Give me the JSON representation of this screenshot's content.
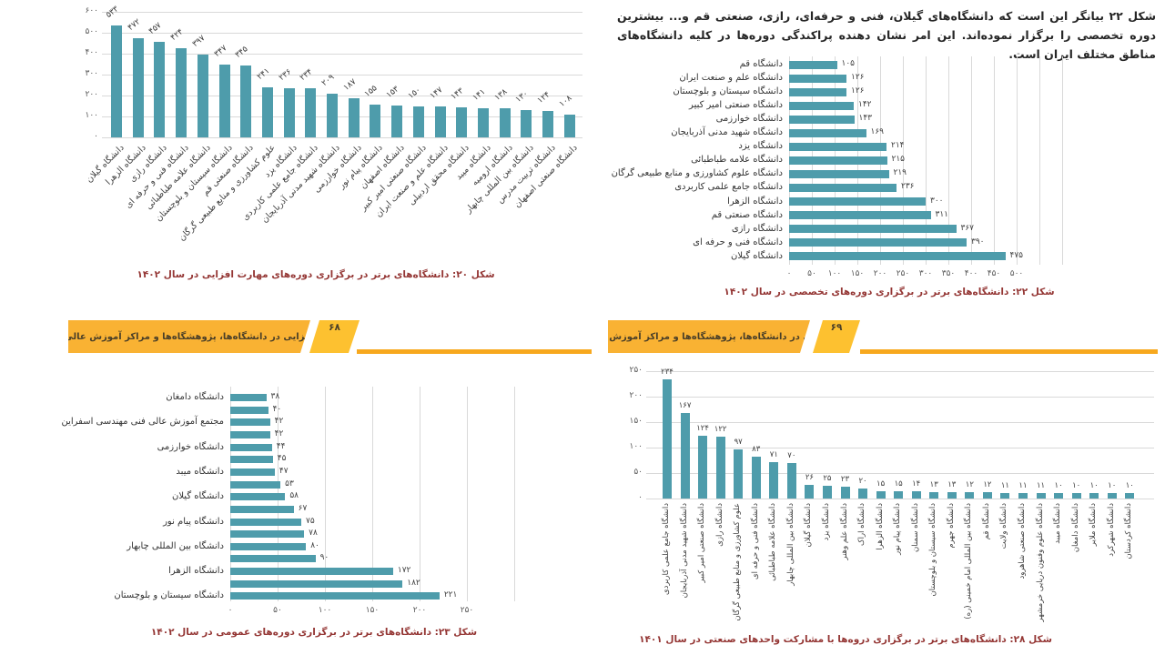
{
  "colors": {
    "bar": "#4e9cab",
    "grid": "#d9d9d9",
    "caption": "#943634",
    "banner_orange": "#f9b233",
    "banner_yellow": "#fdc130",
    "banner_rule": "#f7a81e"
  },
  "banners": {
    "title": "مهارت‌افزایی در دانشگاه‌ها، پژوهشگاه‌ها و مراکز آموزش عالی کشور",
    "left_page_number": "۶۸",
    "right_page_number": "۶۹"
  },
  "intro_paragraph": {
    "text": "شکل ۲۲ بیانگر این است که دانشگاه‌های گیلان، فنی و حرفه‌ای، رازی، صنعتی قم و... بیشترین دوره تخصصی را برگزار نموده‌اند. این امر نشان دهنده پراکندگی دوره‌ها در کلیه دانشگاه‌های مناطق مختلف ایران است."
  },
  "chart_data": [
    {
      "id": "fig20",
      "type": "bar",
      "orientation": "vertical",
      "caption": "شکل ۲۰: دانشگاه‌های برتر در برگزاری دوره‌های مهارت افزایی در سال ۱۴۰۲",
      "categories": [
        "دانشگاه گیلان",
        "دانشگاه الزهرا",
        "دانشگاه رازی",
        "دانشگاه فنی و حرفه ای",
        "دانشگاه علامه طباطبائی",
        "دانشگاه سیستان و بلوچستان",
        "دانشگاه صنعتی قم",
        "علوم کشاورزی و منابع طبیعی گرگان",
        "دانشگاه یزد",
        "دانشگاه جامع علمی کاربردی",
        "دانشگاه شهید مدنی آذربایجان",
        "دانشگاه خوارزمی",
        "دانشگاه پیام نور",
        "دانشگاه اصفهان",
        "دانشگاه صنعتی امیر کبیر",
        "دانشگاه علم و صنعت ایران",
        "دانشگاه محقق اردبیلی",
        "دانشگاه میبد",
        "دانشگاه ارومیه",
        "دانشگاه بین المللی چابهار",
        "دانشگاه تربیت مدرس",
        "دانشگاه صنعتی اصفهان"
      ],
      "values": [
        533,
        472,
        457,
        424,
        397,
        347,
        345,
        241,
        236,
        234,
        209,
        187,
        155,
        153,
        150,
        147,
        143,
        141,
        138,
        130,
        124,
        108
      ],
      "ylim": [
        0,
        600
      ],
      "ytick_step": 100,
      "grid": true,
      "digit_style": "persian"
    },
    {
      "id": "fig22",
      "type": "bar",
      "orientation": "horizontal",
      "caption": "شکل ۲۲: دانشگاه‌های برتر در برگزاری دوره‌های تخصصی در سال ۱۴۰۲",
      "categories": [
        "دانشگاه قم",
        "دانشگاه علم و صنعت ایران",
        "دانشگاه سیستان و بلوچستان",
        "دانشگاه صنعتی امیر کبیر",
        "دانشگاه خوارزمی",
        "دانشگاه شهید مدنی آذربایجان",
        "دانشگاه یزد",
        "دانشگاه علامه طباطبائی",
        "دانشگاه علوم کشاورزی و منابع طبیعی گرگان",
        "دانشگاه جامع علمی کاربردی",
        "دانشگاه الزهرا",
        "دانشگاه صنعتی قم",
        "دانشگاه رازی",
        "دانشگاه فنی و حرفه ای",
        "دانشگاه گیلان"
      ],
      "values": [
        105,
        126,
        126,
        142,
        143,
        169,
        214,
        215,
        219,
        236,
        300,
        311,
        367,
        390,
        475
      ],
      "xlim": [
        0,
        500
      ],
      "xtick_step": 50,
      "grid": true,
      "digit_style": "persian"
    },
    {
      "id": "fig23",
      "type": "bar",
      "orientation": "horizontal",
      "caption": "شکل ۲۳: دانشگاه‌های برتر در برگزاری دوره‌های عمومی در سال ۱۴۰۲",
      "note": "only alternate bars carry a category label",
      "categories": [
        "دانشگاه دامغان",
        "",
        "مجتمع آموزش عالی فنی مهندسی اسفراین",
        "",
        "دانشگاه خوارزمی",
        "",
        "دانشگاه میبد",
        "",
        "دانشگاه گیلان",
        "",
        "دانشگاه پیام نور",
        "",
        "دانشگاه بین المللی چابهار",
        "",
        "دانشگاه الزهرا",
        "",
        "دانشگاه سیستان و بلوچستان"
      ],
      "values": [
        38,
        40,
        42,
        42,
        44,
        45,
        47,
        53,
        58,
        67,
        75,
        78,
        80,
        90,
        172,
        182,
        221
      ],
      "xlim": [
        0,
        250
      ],
      "xtick_step": 50,
      "grid": true,
      "digit_style": "persian"
    },
    {
      "id": "fig28",
      "type": "bar",
      "orientation": "vertical",
      "caption": "شکل ۲۸: دانشگاه‌های برتر در برگزاری دروه‌ها با مشارکت واحدهای صنعتی در سال ۱۴۰۱",
      "categories": [
        "دانشگاه جامع علمی کاربردی",
        "دانشگاه شهید مدنی آذربایجان",
        "دانشگاه صنعتی امیر کبیر",
        "دانشگاه رازی",
        "علوم کشاورزی و منابع طبیعی گرگان",
        "دانشگاه فنی و حرفه ای",
        "دانشگاه علامه طباطبائی",
        "دانشگاه بین المللی چابهار",
        "دانشگاه گیلان",
        "دانشگاه یزد",
        "دانشگاه علم وهنر",
        "دانشگاه اراک",
        "دانشگاه الزهرا",
        "دانشگاه پیام نور",
        "دانشگاه سمنان",
        "دانشگاه سیستان و بلوچستان",
        "دانشگاه جهرم",
        "دانشگاه بین المللی امام خمینی (ره)",
        "دانشگاه قم",
        "دانشگاه ولایت",
        "دانشگاه صنعتی شاهرود",
        "دانشگاه علوم وفنون دریایی خرمشهر",
        "دانشگاه میبد",
        "دانشگاه دامغان",
        "دانشگاه ملایر",
        "دانشگاه شهرکرد",
        "دانشگاه کردستان"
      ],
      "values": [
        234,
        167,
        124,
        122,
        97,
        83,
        71,
        70,
        26,
        25,
        23,
        20,
        15,
        15,
        14,
        13,
        13,
        12,
        12,
        11,
        11,
        11,
        10,
        10,
        10,
        10,
        10
      ],
      "ylim": [
        0,
        250
      ],
      "ytick_step": 50,
      "grid": true,
      "digit_style": "persian"
    }
  ]
}
